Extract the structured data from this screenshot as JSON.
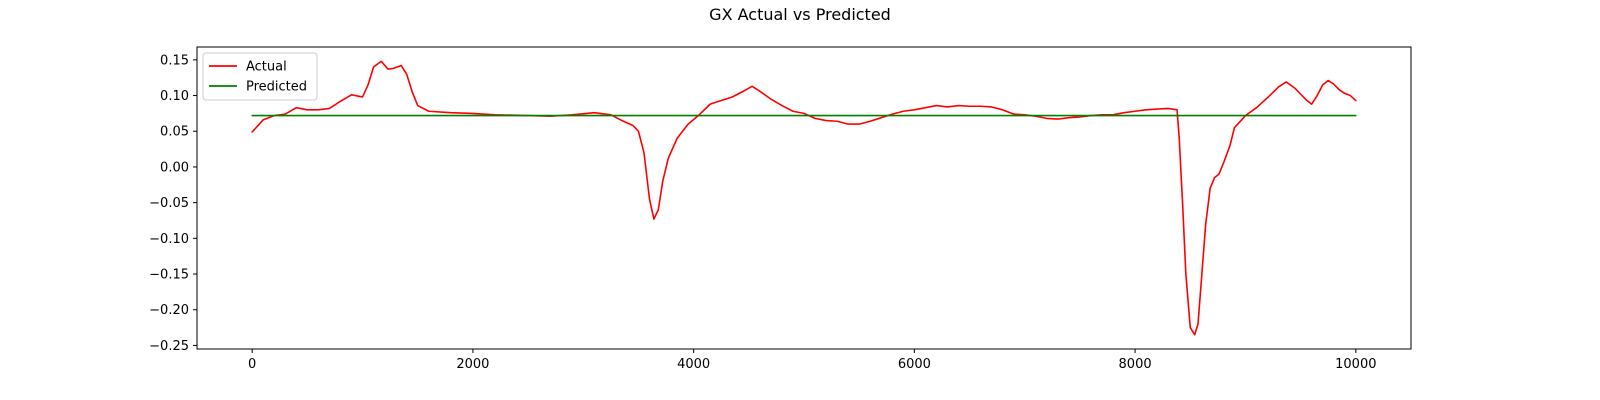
{
  "chart_data": {
    "type": "line",
    "title": "GX Actual vs Predicted",
    "xlabel": "",
    "ylabel": "",
    "xlim": [
      -500,
      10500
    ],
    "ylim": [
      -0.255,
      0.168
    ],
    "x_ticks": [
      0,
      2000,
      4000,
      6000,
      8000,
      10000
    ],
    "x_tick_labels": [
      "0",
      "2000",
      "4000",
      "6000",
      "8000",
      "10000"
    ],
    "y_ticks": [
      0.15,
      0.1,
      0.05,
      0.0,
      -0.05,
      -0.1,
      -0.15,
      -0.2,
      -0.25
    ],
    "y_tick_labels": [
      "0.15",
      "0.10",
      "0.05",
      "0.00",
      "−0.05",
      "−0.10",
      "−0.15",
      "−0.20",
      "−0.25"
    ],
    "grid": false,
    "legend_position": "top-left",
    "series": [
      {
        "name": "Actual",
        "color": "#ff0000",
        "x": [
          0,
          100,
          200,
          300,
          400,
          500,
          600,
          700,
          800,
          900,
          1000,
          1050,
          1100,
          1170,
          1230,
          1280,
          1350,
          1400,
          1450,
          1500,
          1600,
          1800,
          2000,
          2200,
          2500,
          2700,
          2900,
          3100,
          3250,
          3350,
          3450,
          3500,
          3550,
          3600,
          3640,
          3680,
          3720,
          3770,
          3850,
          3950,
          4050,
          4150,
          4250,
          4350,
          4450,
          4530,
          4600,
          4700,
          4800,
          4900,
          5000,
          5100,
          5200,
          5300,
          5400,
          5500,
          5600,
          5700,
          5800,
          5900,
          6000,
          6100,
          6200,
          6300,
          6400,
          6500,
          6600,
          6700,
          6800,
          6900,
          7000,
          7100,
          7200,
          7300,
          7400,
          7500,
          7600,
          7700,
          7800,
          7900,
          8000,
          8100,
          8200,
          8300,
          8380,
          8400,
          8430,
          8460,
          8500,
          8540,
          8570,
          8600,
          8640,
          8680,
          8720,
          8760,
          8800,
          8860,
          8900,
          8960,
          9000,
          9100,
          9200,
          9300,
          9370,
          9450,
          9500,
          9550,
          9600,
          9650,
          9700,
          9750,
          9800,
          9850,
          9900,
          9950,
          10000
        ],
        "values": [
          0.049,
          0.066,
          0.072,
          0.074,
          0.083,
          0.08,
          0.08,
          0.082,
          0.092,
          0.101,
          0.098,
          0.115,
          0.14,
          0.148,
          0.137,
          0.138,
          0.142,
          0.13,
          0.105,
          0.086,
          0.078,
          0.076,
          0.075,
          0.073,
          0.072,
          0.071,
          0.073,
          0.076,
          0.073,
          0.065,
          0.058,
          0.05,
          0.02,
          -0.045,
          -0.073,
          -0.06,
          -0.02,
          0.012,
          0.04,
          0.06,
          0.073,
          0.088,
          0.093,
          0.098,
          0.106,
          0.113,
          0.106,
          0.095,
          0.086,
          0.078,
          0.075,
          0.068,
          0.065,
          0.064,
          0.06,
          0.06,
          0.064,
          0.069,
          0.074,
          0.078,
          0.08,
          0.083,
          0.086,
          0.084,
          0.086,
          0.085,
          0.085,
          0.084,
          0.08,
          0.074,
          0.073,
          0.071,
          0.068,
          0.067,
          0.069,
          0.07,
          0.072,
          0.073,
          0.073,
          0.076,
          0.078,
          0.08,
          0.081,
          0.082,
          0.08,
          0.04,
          -0.05,
          -0.15,
          -0.225,
          -0.235,
          -0.22,
          -0.16,
          -0.08,
          -0.03,
          -0.015,
          -0.01,
          0.005,
          0.03,
          0.055,
          0.065,
          0.072,
          0.083,
          0.097,
          0.112,
          0.119,
          0.11,
          0.102,
          0.094,
          0.088,
          0.1,
          0.115,
          0.121,
          0.116,
          0.108,
          0.103,
          0.1,
          0.093
        ]
      },
      {
        "name": "Predicted",
        "color": "#008000",
        "x": [
          0,
          2000,
          4000,
          6000,
          8000,
          10000
        ],
        "values": [
          0.072,
          0.072,
          0.072,
          0.072,
          0.072,
          0.072
        ]
      }
    ]
  }
}
